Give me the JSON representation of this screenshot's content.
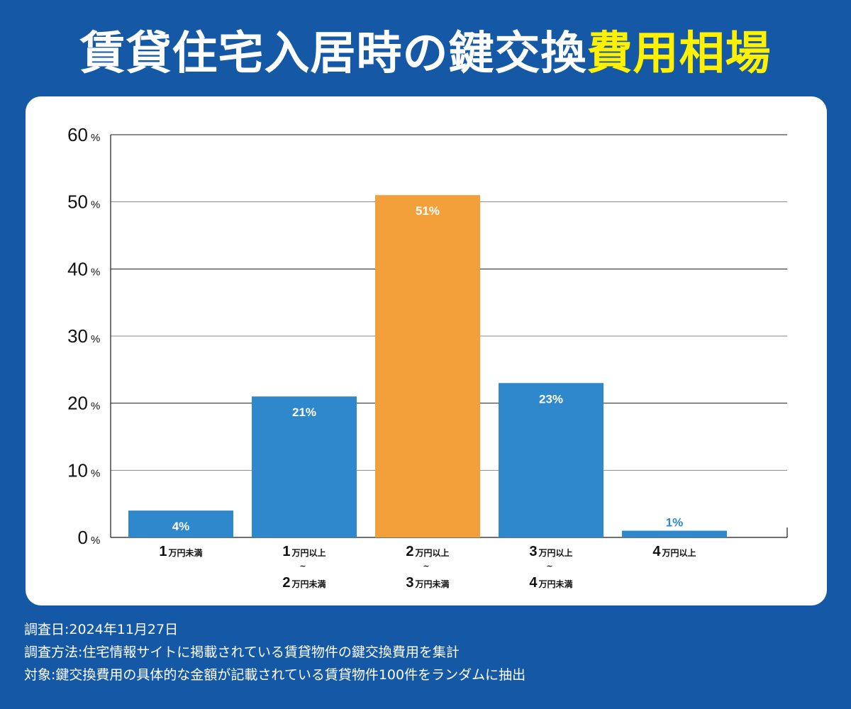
{
  "title": {
    "main": "賃貸住宅入居時の鍵交換",
    "highlight": "費用相場"
  },
  "colors": {
    "background": "#1558a6",
    "bar": "#2e88cb",
    "bar_highlight": "#f3a03a",
    "title_highlight": "#fff100"
  },
  "chart_data": {
    "type": "bar",
    "title": "賃貸住宅入居時の鍵交換費用相場",
    "xlabel": "",
    "ylabel": "",
    "ylim": [
      0,
      60
    ],
    "yticks": [
      0,
      10,
      20,
      30,
      40,
      50,
      60
    ],
    "ytick_unit": "%",
    "grid": true,
    "categories": [
      {
        "lines": [
          {
            "num": "1",
            "text": "万円未満"
          }
        ]
      },
      {
        "lines": [
          {
            "num": "1",
            "text": "万円以上"
          },
          {
            "num": "2",
            "text": "万円未満"
          }
        ]
      },
      {
        "lines": [
          {
            "num": "2",
            "text": "万円以上"
          },
          {
            "num": "3",
            "text": "万円未満"
          }
        ]
      },
      {
        "lines": [
          {
            "num": "3",
            "text": "万円以上"
          },
          {
            "num": "4",
            "text": "万円未満"
          }
        ]
      },
      {
        "lines": [
          {
            "num": "4",
            "text": "万円以上"
          }
        ]
      }
    ],
    "values": [
      4,
      21,
      51,
      23,
      1
    ],
    "value_labels": [
      "4%",
      "21%",
      "51%",
      "23%",
      "1%"
    ],
    "highlight_index": 2,
    "range_separator": "~"
  },
  "notes": [
    "調査日:2024年11月27日",
    "調査方法:住宅情報サイトに掲載されている賃貸物件の鍵交換費用を集計",
    "対象:鍵交換費用の具体的な金額が記載されている賃貸物件100件をランダムに抽出"
  ]
}
